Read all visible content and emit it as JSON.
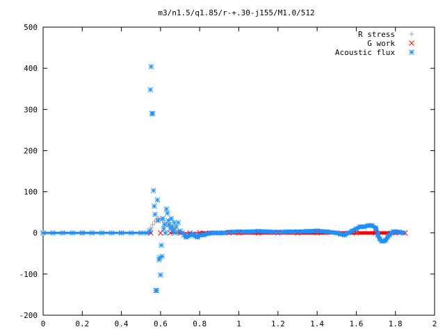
{
  "chart_data": {
    "type": "scatter",
    "title": "m3/n1.5/q1.85/r-+.30-j155/M1.0/512",
    "xlabel": "",
    "ylabel": "",
    "xlim": [
      0,
      2
    ],
    "ylim": [
      -200,
      500
    ],
    "x_ticks": [
      "0",
      "0.2",
      "0.4",
      "0.6",
      "0.8",
      "1",
      "1.2",
      "1.4",
      "1.6",
      "1.8",
      "2"
    ],
    "y_ticks": [
      "500",
      "400",
      "300",
      "200",
      "100",
      "0",
      "-100",
      "-200"
    ],
    "x_tick_values": [
      0,
      0.2,
      0.4,
      0.6,
      0.8,
      1.0,
      1.2,
      1.4,
      1.6,
      1.8,
      2.0
    ],
    "y_tick_values": [
      500,
      400,
      300,
      200,
      100,
      0,
      -100,
      -200
    ],
    "grid": false,
    "legend_position": "top-right",
    "series": [
      {
        "name": "R stress",
        "marker": "plus",
        "color": "#a0a0a0",
        "x": [
          0.0,
          0.1,
          0.2,
          0.3,
          0.4,
          0.5,
          0.54,
          0.55,
          0.56,
          0.57,
          0.58,
          0.59,
          0.6,
          0.61,
          0.62,
          0.63,
          0.64,
          0.65,
          0.66,
          0.67,
          0.68,
          0.69,
          0.7,
          0.72,
          0.74,
          0.76,
          0.78,
          0.8,
          0.85,
          0.9,
          0.95,
          1.0,
          1.2,
          1.4,
          1.6,
          1.8
        ],
        "y": [
          0,
          0,
          0,
          0,
          0,
          0,
          2,
          12,
          20,
          28,
          33,
          36,
          34,
          30,
          26,
          22,
          18,
          14,
          10,
          8,
          6,
          4,
          2,
          -2,
          -4,
          -3,
          -2,
          -1,
          0,
          0,
          0,
          0,
          0,
          0,
          0,
          0
        ]
      },
      {
        "name": "G work",
        "marker": "cross",
        "color": "#ff0000",
        "x": [
          0.0,
          0.2,
          0.4,
          0.55,
          0.6,
          0.65,
          0.7,
          0.75,
          0.8,
          0.85,
          0.9,
          0.95,
          1.0,
          1.1,
          1.2,
          1.3,
          1.4,
          1.5,
          1.6,
          1.7,
          1.8,
          1.85
        ],
        "y": [
          0,
          0,
          0,
          0,
          0,
          0,
          0,
          0,
          0,
          0,
          0,
          0,
          0,
          0,
          0,
          0,
          0,
          0,
          0,
          0,
          0,
          0
        ]
      },
      {
        "name": "Acoustic flux",
        "marker": "star",
        "color": "#1e90ff",
        "x": [
          0.0,
          0.05,
          0.1,
          0.15,
          0.2,
          0.25,
          0.3,
          0.35,
          0.4,
          0.45,
          0.5,
          0.53,
          0.545,
          0.548,
          0.552,
          0.556,
          0.56,
          0.564,
          0.568,
          0.572,
          0.576,
          0.58,
          0.584,
          0.588,
          0.592,
          0.596,
          0.6,
          0.604,
          0.608,
          0.612,
          0.616,
          0.62,
          0.625,
          0.63,
          0.635,
          0.64,
          0.645,
          0.65,
          0.655,
          0.66,
          0.665,
          0.67,
          0.675,
          0.68,
          0.69,
          0.7,
          0.71,
          0.72,
          0.73,
          0.74,
          0.75,
          0.76,
          0.77,
          0.78,
          0.79,
          0.8,
          0.82,
          0.84,
          0.86,
          0.88,
          0.9,
          0.92,
          0.95,
          1.0,
          1.05,
          1.1,
          1.15,
          1.2,
          1.25,
          1.3,
          1.35,
          1.4,
          1.45,
          1.5,
          1.52,
          1.54,
          1.56,
          1.58,
          1.6,
          1.62,
          1.64,
          1.66,
          1.68,
          1.7,
          1.71,
          1.72,
          1.73,
          1.74,
          1.75,
          1.76,
          1.77,
          1.78,
          1.79,
          1.8,
          1.82,
          1.84
        ],
        "y": [
          0,
          0,
          0,
          0,
          0,
          0,
          0,
          0,
          0,
          0,
          0,
          0,
          5,
          348,
          404,
          290,
          290,
          103,
          65,
          45,
          -140,
          -140,
          80,
          30,
          -65,
          -60,
          -102,
          -30,
          -57,
          35,
          10,
          20,
          0,
          58,
          48,
          30,
          20,
          10,
          35,
          15,
          5,
          25,
          0,
          15,
          25,
          5,
          0,
          -5,
          -10,
          -8,
          -5,
          -3,
          -5,
          -8,
          -10,
          -5,
          -5,
          -2,
          0,
          0,
          0,
          0,
          2,
          3,
          3,
          4,
          3,
          2,
          3,
          3,
          4,
          5,
          3,
          0,
          -3,
          -5,
          0,
          5,
          10,
          15,
          15,
          18,
          18,
          12,
          -5,
          -15,
          -20,
          -20,
          -18,
          -10,
          -5,
          0,
          3,
          3,
          2,
          0
        ]
      }
    ]
  }
}
